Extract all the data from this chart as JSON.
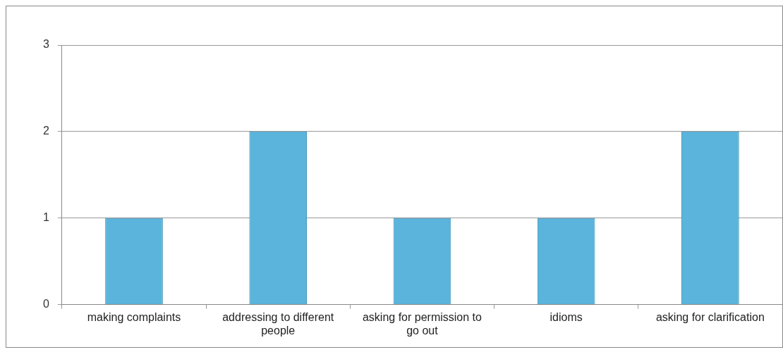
{
  "chart_data": {
    "type": "bar",
    "categories": [
      "making complaints",
      "addressing to different people",
      "asking for permission to go out",
      "idioms",
      "asking for clarification"
    ],
    "values": [
      1,
      2,
      1,
      1,
      2
    ],
    "color": "#5ab4dc",
    "ylim": [
      0,
      3
    ],
    "yticks": [
      0,
      1,
      2,
      3
    ],
    "grid": "y"
  }
}
